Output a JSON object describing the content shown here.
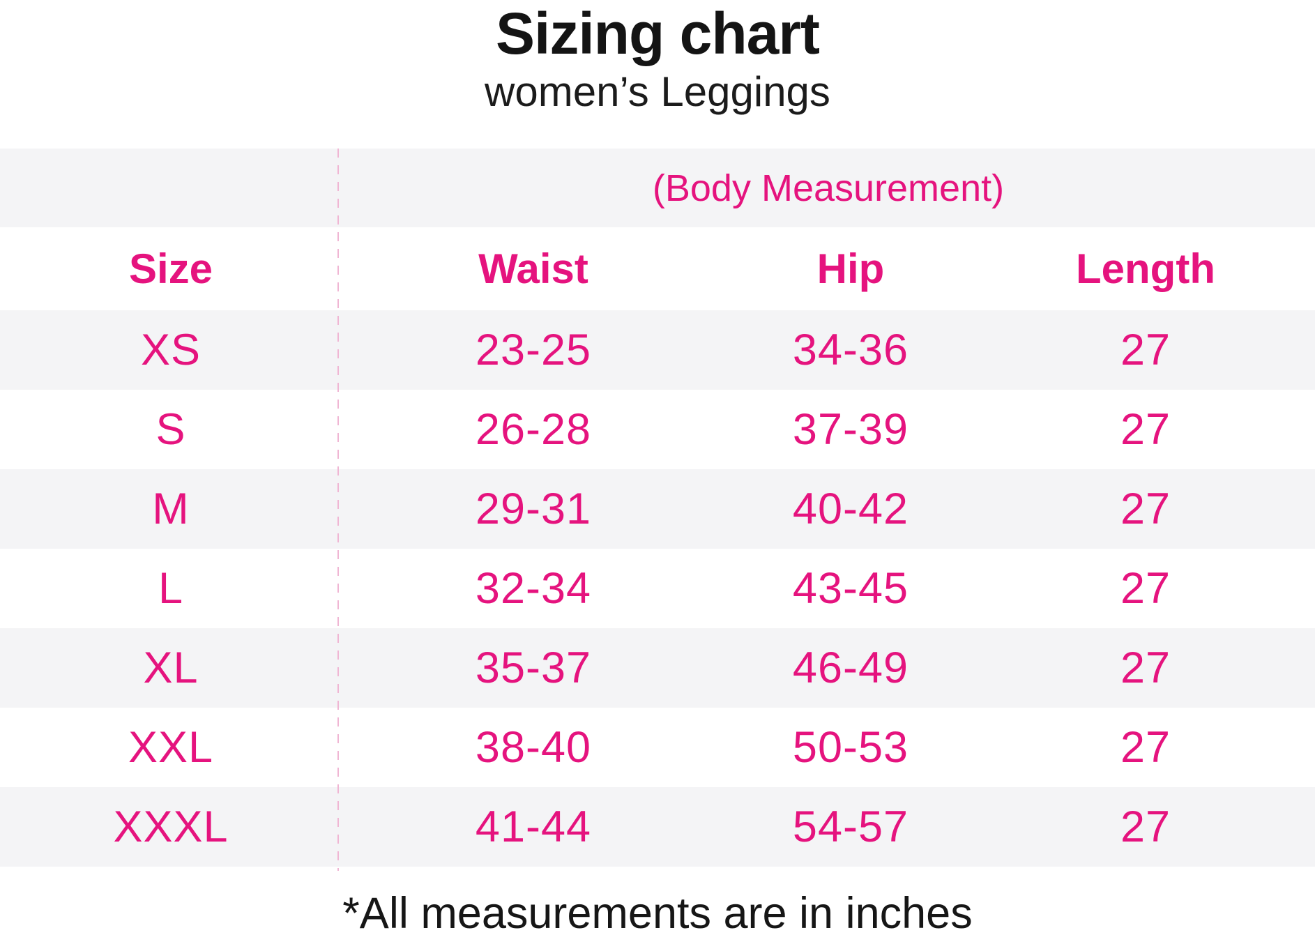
{
  "colors": {
    "accent_pink": "#E5137E",
    "row_stripe_gray": "#F4F4F6",
    "heading_black": "#151515",
    "divider_dash_pink": "#F0B6D4"
  },
  "header": {
    "title": "Sizing chart",
    "subtitle": "women’s Leggings"
  },
  "table": {
    "group_header": "(Body Measurement)",
    "columns": [
      "Size",
      "Waist",
      "Hip",
      "Length"
    ],
    "rows": [
      {
        "size": "XS",
        "waist": "23-25",
        "hip": "34-36",
        "length": "27"
      },
      {
        "size": "S",
        "waist": "26-28",
        "hip": "37-39",
        "length": "27"
      },
      {
        "size": "M",
        "waist": "29-31",
        "hip": "40-42",
        "length": "27"
      },
      {
        "size": "L",
        "waist": "32-34",
        "hip": "43-45",
        "length": "27"
      },
      {
        "size": "XL",
        "waist": "35-37",
        "hip": "46-49",
        "length": "27"
      },
      {
        "size": "XXL",
        "waist": "38-40",
        "hip": "50-53",
        "length": "27"
      },
      {
        "size": "XXXL",
        "waist": "41-44",
        "hip": "54-57",
        "length": "27"
      }
    ]
  },
  "footer": {
    "note": "*All measurements are in inches"
  },
  "chart_data": {
    "type": "table",
    "title": "Sizing chart",
    "subtitle": "women’s Leggings",
    "group_header": "(Body Measurement)",
    "columns": [
      "Size",
      "Waist",
      "Hip",
      "Length"
    ],
    "rows": [
      [
        "XS",
        "23-25",
        "34-36",
        "27"
      ],
      [
        "S",
        "26-28",
        "37-39",
        "27"
      ],
      [
        "M",
        "29-31",
        "40-42",
        "27"
      ],
      [
        "L",
        "32-34",
        "43-45",
        "27"
      ],
      [
        "XL",
        "35-37",
        "46-49",
        "27"
      ],
      [
        "XXL",
        "38-40",
        "50-53",
        "27"
      ],
      [
        "XXXL",
        "41-44",
        "54-57",
        "27"
      ]
    ],
    "units": "inches",
    "note": "*All measurements are in inches"
  }
}
